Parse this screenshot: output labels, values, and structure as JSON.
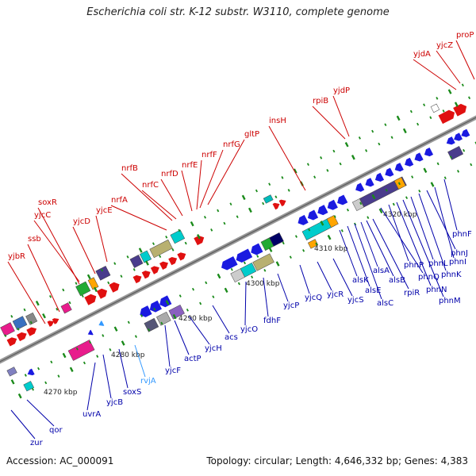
{
  "title": "Escherichia coli str. K-12 substr. W3110, complete genome",
  "accession": "Accession: AC_000091",
  "summary": "Topology: circular; Length: 4,646,332 bp; Genes: 4,383",
  "colors": {
    "forward_label": "#cc0000",
    "reverse_label": "#0000aa",
    "rna_label": "#3399ff",
    "backbone": "#888888",
    "tick": "#1a8a1a"
  },
  "scale_labels": [
    "4270 kbp",
    "4280 kbp",
    "4290 kbp",
    "4300 kbp",
    "4310 kbp",
    "4320 kbp"
  ],
  "forward_genes": [
    "yjbR",
    "ssb",
    "yjcC",
    "soxR",
    "yjcD",
    "yjcE",
    "nrfA",
    "nrfB",
    "nrfC",
    "nrfD",
    "nrfE",
    "nrfF",
    "nrfG",
    "gltP",
    "insH",
    "rpiB",
    "yjdP",
    "yjdA",
    "yjcZ",
    "proP"
  ],
  "reverse_genes": [
    "zur",
    "qor",
    "uvrA",
    "yjcB",
    "soxS",
    "rvjA",
    "yjcF",
    "actP",
    "yjcH",
    "acs",
    "yjcO",
    "fdhF",
    "yjcP",
    "yjcQ",
    "yjcR",
    "yjcS",
    "alsK",
    "alsE",
    "alsC",
    "alsA",
    "alsB",
    "rpiR",
    "phnQ",
    "phnP",
    "phnN",
    "phnM",
    "phnL",
    "phnK",
    "phnJ",
    "phnI",
    "phnF"
  ]
}
